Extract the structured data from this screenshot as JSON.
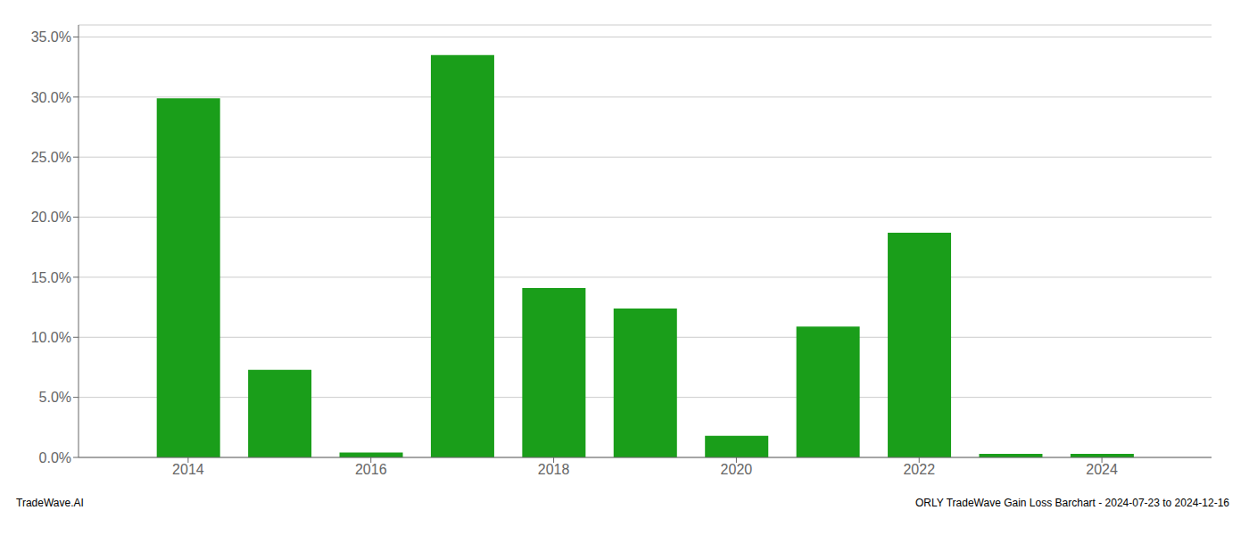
{
  "chart_data": {
    "type": "bar",
    "x": [
      2014,
      2015,
      2016,
      2017,
      2018,
      2019,
      2020,
      2021,
      2022,
      2023,
      2024
    ],
    "values": [
      0.299,
      0.073,
      0.004,
      0.335,
      0.141,
      0.124,
      0.018,
      0.109,
      0.187,
      0.003,
      0.003
    ],
    "color": "#1a9e1a",
    "xlim": [
      2012.8,
      2025.2
    ],
    "xticks": [
      2014,
      2016,
      2018,
      2020,
      2022,
      2024
    ],
    "ylim": [
      0,
      0.36
    ],
    "yticks": [
      {
        "value": 0.0,
        "label": "0.0%"
      },
      {
        "value": 0.05,
        "label": "5.0%"
      },
      {
        "value": 0.1,
        "label": "10.0%"
      },
      {
        "value": 0.15,
        "label": "15.0%"
      },
      {
        "value": 0.2,
        "label": "20.0%"
      },
      {
        "value": 0.25,
        "label": "25.0%"
      },
      {
        "value": 0.3,
        "label": "30.0%"
      },
      {
        "value": 0.35,
        "label": "35.0%"
      }
    ],
    "grid": true,
    "annotations": [
      "TradeWave.AI",
      "ORLY TradeWave Gain Loss Barchart - 2024-07-23 to 2024-12-16"
    ]
  }
}
